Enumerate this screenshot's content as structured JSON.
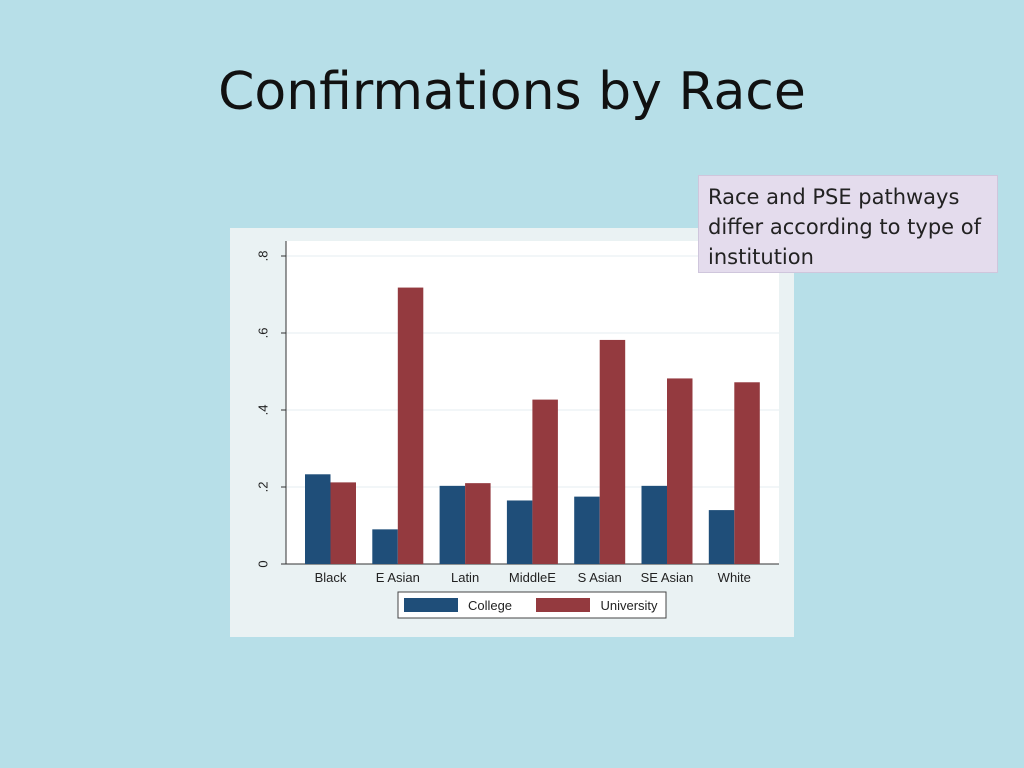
{
  "slide": {
    "title": "Confirmations by Race",
    "callout": "Race and PSE pathways differ according to type of institution"
  },
  "chart_data": {
    "type": "bar",
    "title": "",
    "xlabel": "",
    "ylabel": "",
    "ylim": [
      0,
      0.8
    ],
    "yticks": [
      0,
      0.2,
      0.4,
      0.6,
      0.8
    ],
    "ytick_labels": [
      "0",
      ".2",
      ".4",
      ".6",
      ".8"
    ],
    "categories": [
      "Black",
      "E Asian",
      "Latin",
      "MiddleE",
      "S Asian",
      "SE Asian",
      "White"
    ],
    "series": [
      {
        "name": "College",
        "color": "#1f4e79",
        "values": [
          0.233,
          0.09,
          0.203,
          0.165,
          0.175,
          0.203,
          0.14
        ]
      },
      {
        "name": "University",
        "color": "#943a3f",
        "values": [
          0.212,
          0.718,
          0.21,
          0.427,
          0.582,
          0.482,
          0.472
        ]
      }
    ],
    "grid": true,
    "legend_position": "bottom"
  }
}
